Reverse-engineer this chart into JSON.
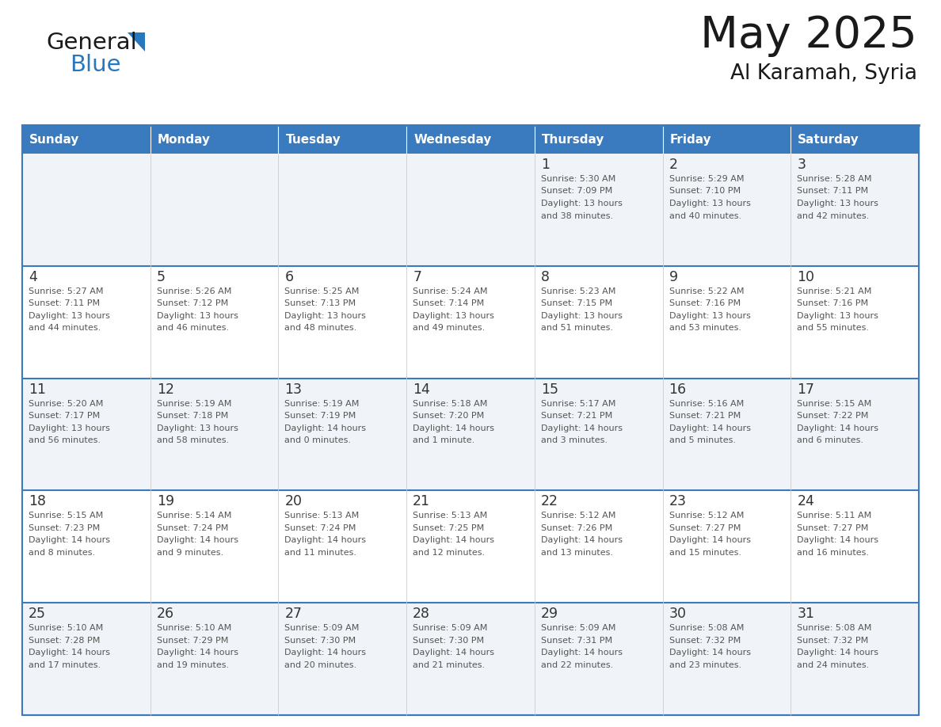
{
  "title": "May 2025",
  "subtitle": "Al Karamah, Syria",
  "header_bg": "#3a7bbf",
  "header_text_color": "#ffffff",
  "days_of_week": [
    "Sunday",
    "Monday",
    "Tuesday",
    "Wednesday",
    "Thursday",
    "Friday",
    "Saturday"
  ],
  "cell_bg_odd": "#f0f4f8",
  "cell_bg_even": "#ffffff",
  "day_num_color": "#333333",
  "info_color": "#555555",
  "calendar_data": [
    [
      {
        "day": null,
        "info": null
      },
      {
        "day": null,
        "info": null
      },
      {
        "day": null,
        "info": null
      },
      {
        "day": null,
        "info": null
      },
      {
        "day": "1",
        "info": "Sunrise: 5:30 AM\nSunset: 7:09 PM\nDaylight: 13 hours\nand 38 minutes."
      },
      {
        "day": "2",
        "info": "Sunrise: 5:29 AM\nSunset: 7:10 PM\nDaylight: 13 hours\nand 40 minutes."
      },
      {
        "day": "3",
        "info": "Sunrise: 5:28 AM\nSunset: 7:11 PM\nDaylight: 13 hours\nand 42 minutes."
      }
    ],
    [
      {
        "day": "4",
        "info": "Sunrise: 5:27 AM\nSunset: 7:11 PM\nDaylight: 13 hours\nand 44 minutes."
      },
      {
        "day": "5",
        "info": "Sunrise: 5:26 AM\nSunset: 7:12 PM\nDaylight: 13 hours\nand 46 minutes."
      },
      {
        "day": "6",
        "info": "Sunrise: 5:25 AM\nSunset: 7:13 PM\nDaylight: 13 hours\nand 48 minutes."
      },
      {
        "day": "7",
        "info": "Sunrise: 5:24 AM\nSunset: 7:14 PM\nDaylight: 13 hours\nand 49 minutes."
      },
      {
        "day": "8",
        "info": "Sunrise: 5:23 AM\nSunset: 7:15 PM\nDaylight: 13 hours\nand 51 minutes."
      },
      {
        "day": "9",
        "info": "Sunrise: 5:22 AM\nSunset: 7:16 PM\nDaylight: 13 hours\nand 53 minutes."
      },
      {
        "day": "10",
        "info": "Sunrise: 5:21 AM\nSunset: 7:16 PM\nDaylight: 13 hours\nand 55 minutes."
      }
    ],
    [
      {
        "day": "11",
        "info": "Sunrise: 5:20 AM\nSunset: 7:17 PM\nDaylight: 13 hours\nand 56 minutes."
      },
      {
        "day": "12",
        "info": "Sunrise: 5:19 AM\nSunset: 7:18 PM\nDaylight: 13 hours\nand 58 minutes."
      },
      {
        "day": "13",
        "info": "Sunrise: 5:19 AM\nSunset: 7:19 PM\nDaylight: 14 hours\nand 0 minutes."
      },
      {
        "day": "14",
        "info": "Sunrise: 5:18 AM\nSunset: 7:20 PM\nDaylight: 14 hours\nand 1 minute."
      },
      {
        "day": "15",
        "info": "Sunrise: 5:17 AM\nSunset: 7:21 PM\nDaylight: 14 hours\nand 3 minutes."
      },
      {
        "day": "16",
        "info": "Sunrise: 5:16 AM\nSunset: 7:21 PM\nDaylight: 14 hours\nand 5 minutes."
      },
      {
        "day": "17",
        "info": "Sunrise: 5:15 AM\nSunset: 7:22 PM\nDaylight: 14 hours\nand 6 minutes."
      }
    ],
    [
      {
        "day": "18",
        "info": "Sunrise: 5:15 AM\nSunset: 7:23 PM\nDaylight: 14 hours\nand 8 minutes."
      },
      {
        "day": "19",
        "info": "Sunrise: 5:14 AM\nSunset: 7:24 PM\nDaylight: 14 hours\nand 9 minutes."
      },
      {
        "day": "20",
        "info": "Sunrise: 5:13 AM\nSunset: 7:24 PM\nDaylight: 14 hours\nand 11 minutes."
      },
      {
        "day": "21",
        "info": "Sunrise: 5:13 AM\nSunset: 7:25 PM\nDaylight: 14 hours\nand 12 minutes."
      },
      {
        "day": "22",
        "info": "Sunrise: 5:12 AM\nSunset: 7:26 PM\nDaylight: 14 hours\nand 13 minutes."
      },
      {
        "day": "23",
        "info": "Sunrise: 5:12 AM\nSunset: 7:27 PM\nDaylight: 14 hours\nand 15 minutes."
      },
      {
        "day": "24",
        "info": "Sunrise: 5:11 AM\nSunset: 7:27 PM\nDaylight: 14 hours\nand 16 minutes."
      }
    ],
    [
      {
        "day": "25",
        "info": "Sunrise: 5:10 AM\nSunset: 7:28 PM\nDaylight: 14 hours\nand 17 minutes."
      },
      {
        "day": "26",
        "info": "Sunrise: 5:10 AM\nSunset: 7:29 PM\nDaylight: 14 hours\nand 19 minutes."
      },
      {
        "day": "27",
        "info": "Sunrise: 5:09 AM\nSunset: 7:30 PM\nDaylight: 14 hours\nand 20 minutes."
      },
      {
        "day": "28",
        "info": "Sunrise: 5:09 AM\nSunset: 7:30 PM\nDaylight: 14 hours\nand 21 minutes."
      },
      {
        "day": "29",
        "info": "Sunrise: 5:09 AM\nSunset: 7:31 PM\nDaylight: 14 hours\nand 22 minutes."
      },
      {
        "day": "30",
        "info": "Sunrise: 5:08 AM\nSunset: 7:32 PM\nDaylight: 14 hours\nand 23 minutes."
      },
      {
        "day": "31",
        "info": "Sunrise: 5:08 AM\nSunset: 7:32 PM\nDaylight: 14 hours\nand 24 minutes."
      }
    ]
  ],
  "logo_color_general": "#1a1a1a",
  "logo_color_blue": "#2878be",
  "logo_triangle_color": "#2878be",
  "title_color": "#1a1a1a",
  "subtitle_color": "#1a1a1a"
}
